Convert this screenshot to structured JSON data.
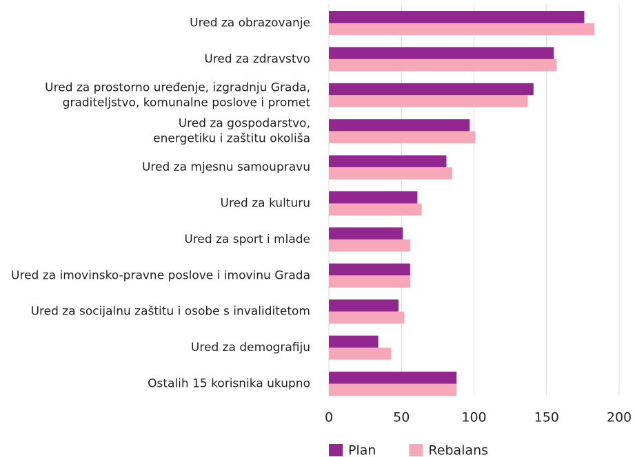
{
  "chart_data": {
    "type": "barh",
    "categories": [
      "Ured za obrazovanje",
      "Ured za zdravstvo",
      "Ured za prostorno uređenje, izgradnju Grada,\ngraditeljstvo, komunalne poslove i promet",
      "Ured za gospodarstvo,\nenergetiku i zaštitu okoliša",
      "Ured za mjesnu samoupravu",
      "Ured za kulturu",
      "Ured za sport i mlade",
      "Ured za imovinsko-pravne poslove i imovinu Grada",
      "Ured za socijalnu zaštitu i osobe s invaliditetom",
      "Ured za demografiju",
      "Ostalih 15 korisnika ukupno"
    ],
    "series": [
      {
        "name": "Plan",
        "color": "#92278f",
        "values": [
          176,
          155,
          141,
          97,
          81,
          61,
          51,
          56,
          48,
          34,
          88
        ]
      },
      {
        "name": "Rebalans",
        "color": "#f7a8b8",
        "values": [
          183,
          157,
          137,
          101,
          85,
          64,
          56,
          56,
          52,
          43,
          88
        ]
      }
    ],
    "xlim": [
      0,
      200
    ],
    "xticks": [
      0,
      50,
      100,
      150,
      200
    ],
    "grid": true,
    "legend": "bottom"
  }
}
